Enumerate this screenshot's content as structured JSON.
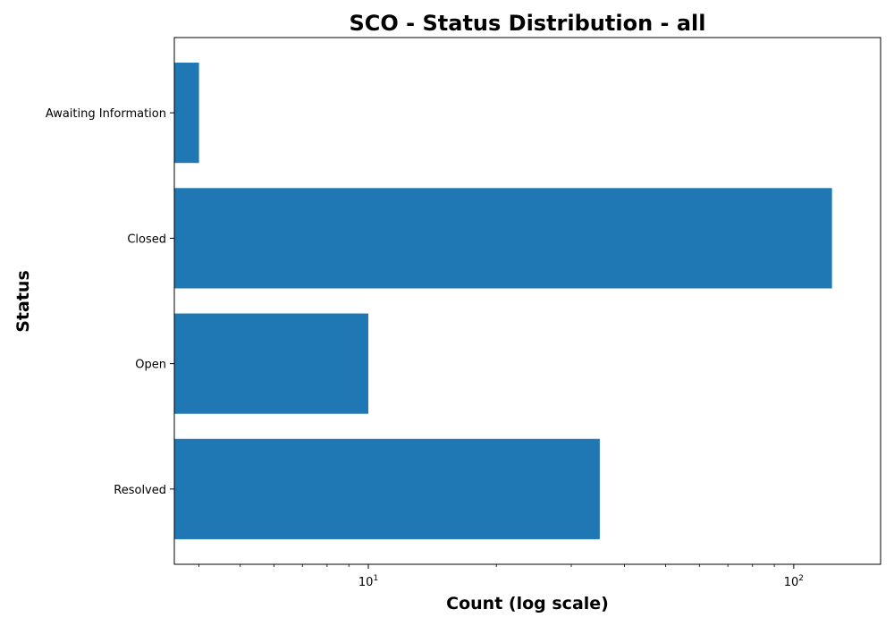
{
  "chart_data": {
    "type": "bar",
    "orientation": "horizontal",
    "title": "SCO - Status Distribution - all",
    "xlabel": "Count (log scale)",
    "ylabel": "Status",
    "x_scale": "log",
    "xlim": [
      3.5,
      160
    ],
    "x_ticks": [
      {
        "base": "10",
        "exp": "1",
        "value": 10
      },
      {
        "base": "10",
        "exp": "2",
        "value": 100
      }
    ],
    "categories": [
      "Awaiting Information",
      "Closed",
      "Open",
      "Resolved"
    ],
    "values": [
      4,
      123,
      10,
      35
    ],
    "bar_color": "#1f77b4",
    "grid": false,
    "legend": "none"
  }
}
